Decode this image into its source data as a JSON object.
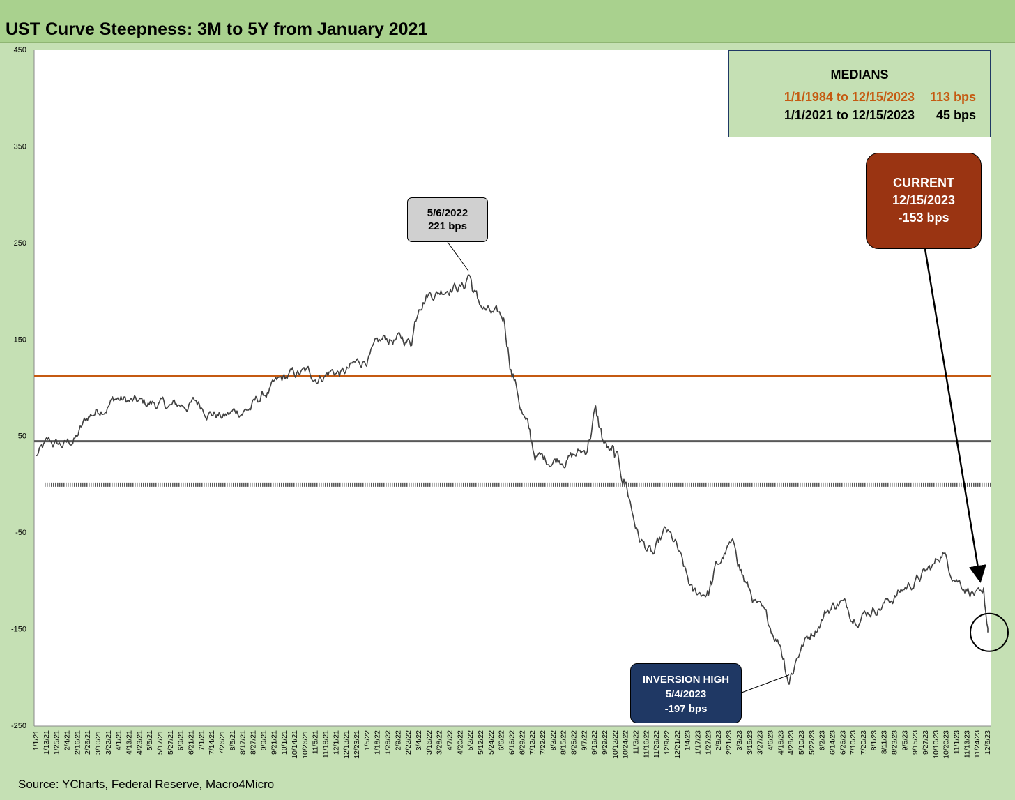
{
  "title": "UST Curve Steepness: 3M to 5Y from January 2021",
  "source": "Source: YCharts, Federal Reserve, Macro4Micro",
  "medians": {
    "heading": "MEDIANS",
    "rows": [
      {
        "label": "1/1/1984 to 12/15/2023",
        "value": "113 bps",
        "line_value": 113,
        "color": "#c55a11"
      },
      {
        "label": "1/1/2021 to 12/15/2023",
        "value": "45 bps",
        "line_value": 45,
        "color": "#595959"
      }
    ]
  },
  "annotations": {
    "peak": {
      "date": "5/6/2022",
      "value": "221 bps"
    },
    "current": {
      "heading": "CURRENT",
      "date": "12/15/2023",
      "value": "-153 bps"
    },
    "inversion": {
      "heading": "INVERSION HIGH",
      "date": "5/4/2023",
      "value": "-197 bps"
    }
  },
  "chart_data": {
    "type": "line",
    "title": "UST Curve Steepness: 3M to 5Y from January 2021",
    "ylim": [
      -250,
      450
    ],
    "yticks": [
      450,
      350,
      250,
      150,
      50,
      -50,
      -150,
      -250
    ],
    "xlim": [
      "2021-01-01",
      "2023-12-15"
    ],
    "xtick_labels": [
      "1/1/21",
      "1/13/21",
      "1/25/21",
      "2/4/21",
      "2/16/21",
      "2/26/21",
      "3/10/21",
      "3/22/21",
      "4/1/21",
      "4/13/21",
      "4/23/21",
      "5/5/21",
      "5/17/21",
      "5/27/21",
      "6/9/21",
      "6/21/21",
      "7/1/21",
      "7/14/21",
      "7/26/21",
      "8/5/21",
      "8/17/21",
      "8/27/21",
      "9/9/21",
      "9/21/21",
      "10/1/21",
      "10/14/21",
      "10/26/21",
      "11/5/21",
      "11/18/21",
      "12/1/21",
      "12/13/21",
      "12/23/21",
      "1/5/22",
      "1/18/22",
      "1/28/22",
      "2/9/22",
      "2/22/22",
      "3/4/22",
      "3/16/22",
      "3/28/22",
      "4/7/22",
      "4/20/22",
      "5/2/22",
      "5/12/22",
      "5/24/22",
      "6/6/22",
      "6/16/22",
      "6/29/22",
      "7/12/22",
      "7/22/22",
      "8/3/22",
      "8/15/22",
      "8/25/22",
      "9/7/22",
      "9/19/22",
      "9/29/22",
      "10/12/22",
      "10/24/22",
      "11/3/22",
      "11/16/22",
      "11/29/22",
      "12/9/22",
      "12/21/22",
      "1/4/23",
      "1/17/23",
      "1/27/23",
      "2/8/23",
      "2/21/23",
      "3/3/23",
      "3/15/23",
      "3/27/23",
      "4/6/23",
      "4/18/23",
      "4/28/23",
      "5/10/23",
      "5/22/23",
      "6/2/23",
      "6/14/23",
      "6/26/23",
      "7/10/23",
      "7/20/23",
      "8/1/23",
      "8/11/23",
      "8/23/23",
      "9/5/23",
      "9/15/23",
      "9/27/23",
      "10/10/23",
      "10/20/23",
      "11/1/23",
      "11/13/23",
      "11/24/23",
      "12/6/23"
    ],
    "series": [
      {
        "values_bps": "3M to 5Y steepness",
        "color": "#404040",
        "x": [
          "2021-01-01",
          "2021-01-15",
          "2021-02-01",
          "2021-02-15",
          "2021-03-01",
          "2021-03-15",
          "2021-04-01",
          "2021-04-15",
          "2021-05-01",
          "2021-05-15",
          "2021-06-01",
          "2021-06-15",
          "2021-07-01",
          "2021-07-15",
          "2021-08-01",
          "2021-08-15",
          "2021-09-01",
          "2021-09-15",
          "2021-10-01",
          "2021-10-15",
          "2021-11-01",
          "2021-11-15",
          "2021-12-01",
          "2021-12-15",
          "2022-01-01",
          "2022-01-15",
          "2022-02-01",
          "2022-02-15",
          "2022-03-01",
          "2022-03-10",
          "2022-03-20",
          "2022-04-01",
          "2022-04-15",
          "2022-05-01",
          "2022-05-06",
          "2022-05-15",
          "2022-06-01",
          "2022-06-15",
          "2022-06-24",
          "2022-07-01",
          "2022-07-10",
          "2022-07-20",
          "2022-08-01",
          "2022-08-15",
          "2022-09-01",
          "2022-09-15",
          "2022-09-26",
          "2022-10-05",
          "2022-10-15",
          "2022-11-01",
          "2022-11-08",
          "2022-11-15",
          "2022-12-01",
          "2022-12-15",
          "2022-12-27",
          "2023-01-05",
          "2023-01-15",
          "2023-02-01",
          "2023-02-15",
          "2023-02-25",
          "2023-03-05",
          "2023-03-15",
          "2023-03-25",
          "2023-04-10",
          "2023-04-25",
          "2023-05-04",
          "2023-05-15",
          "2023-06-01",
          "2023-06-15",
          "2023-07-01",
          "2023-07-15",
          "2023-08-01",
          "2023-08-15",
          "2023-09-01",
          "2023-09-15",
          "2023-10-01",
          "2023-10-15",
          "2023-10-25",
          "2023-11-01",
          "2023-11-15",
          "2023-12-01",
          "2023-12-10",
          "2023-12-15"
        ],
        "y": [
          30,
          42,
          40,
          48,
          70,
          80,
          90,
          86,
          83,
          84,
          80,
          82,
          85,
          78,
          70,
          75,
          80,
          92,
          103,
          112,
          115,
          112,
          118,
          115,
          125,
          135,
          150,
          150,
          148,
          190,
          200,
          200,
          208,
          205,
          221,
          190,
          175,
          170,
          120,
          95,
          60,
          30,
          25,
          28,
          30,
          35,
          75,
          45,
          30,
          0,
          -30,
          -55,
          -75,
          -50,
          -65,
          -90,
          -115,
          -110,
          -80,
          -65,
          -68,
          -100,
          -120,
          -145,
          -165,
          -197,
          -170,
          -150,
          -130,
          -120,
          -135,
          -130,
          -125,
          -115,
          -105,
          -95,
          -85,
          -68,
          -85,
          -100,
          -112,
          -125,
          -153
        ]
      }
    ],
    "reference_lines": [
      {
        "value": 113,
        "color": "#c55a11"
      },
      {
        "value": 45,
        "color": "#595959"
      },
      {
        "value": 0,
        "color": "#595959",
        "style": "dotted"
      }
    ],
    "grid": false,
    "legend": "none"
  }
}
